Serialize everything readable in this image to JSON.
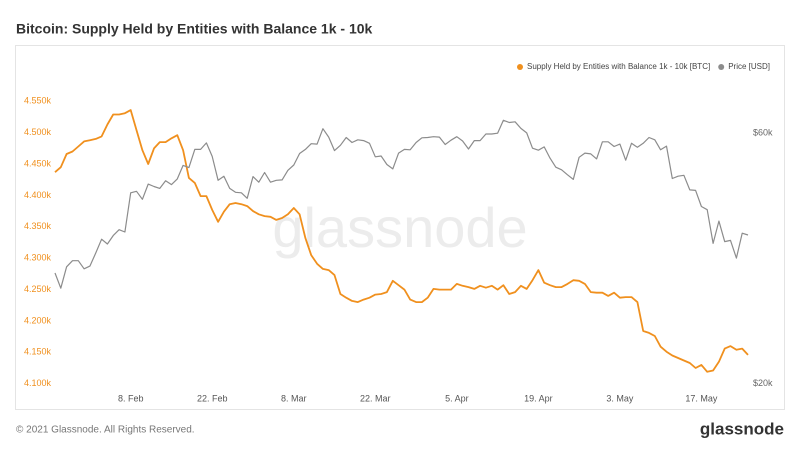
{
  "chart_data": {
    "type": "line",
    "title": "Bitcoin: Supply Held by Entities with Balance 1k - 10k",
    "watermark": "glassnode",
    "footer": {
      "copyright": "© 2021 Glassnode. All Rights Reserved.",
      "logo": "glassnode"
    },
    "legend": "top-right",
    "grid": false,
    "categories": [
      null,
      null,
      null,
      null,
      null,
      null,
      null,
      null,
      null,
      null,
      null,
      null,
      null,
      "8. Feb",
      null,
      null,
      null,
      null,
      null,
      null,
      null,
      null,
      null,
      null,
      null,
      null,
      null,
      "22. Feb",
      null,
      null,
      null,
      null,
      null,
      null,
      null,
      null,
      null,
      null,
      null,
      null,
      null,
      "8. Mar",
      null,
      null,
      null,
      null,
      null,
      null,
      null,
      null,
      null,
      null,
      null,
      null,
      null,
      "22. Mar",
      null,
      null,
      null,
      null,
      null,
      null,
      null,
      null,
      null,
      null,
      null,
      null,
      null,
      "5. Apr",
      null,
      null,
      null,
      null,
      null,
      null,
      null,
      null,
      null,
      null,
      null,
      null,
      null,
      "19. Apr",
      null,
      null,
      null,
      null,
      null,
      null,
      null,
      null,
      null,
      null,
      null,
      null,
      null,
      "3. May",
      null,
      null,
      null,
      null,
      null,
      null,
      null,
      null,
      null,
      null,
      null,
      null,
      null,
      "17. May",
      null,
      null,
      null,
      null,
      null,
      null,
      null,
      null
    ],
    "ylim": [
      4090,
      4560
    ],
    "yticks": [
      {
        "value": 4100,
        "label": "4.100k"
      },
      {
        "value": 4150,
        "label": "4.150k"
      },
      {
        "value": 4200,
        "label": "4.200k"
      },
      {
        "value": 4250,
        "label": "4.250k"
      },
      {
        "value": 4300,
        "label": "4.300k"
      },
      {
        "value": 4350,
        "label": "4.350k"
      },
      {
        "value": 4400,
        "label": "4.400k"
      },
      {
        "value": 4450,
        "label": "4.450k"
      },
      {
        "value": 4500,
        "label": "4.500k"
      },
      {
        "value": 4550,
        "label": "4.550k"
      }
    ],
    "y2lim": [
      19450,
      70960
    ],
    "y2log": true,
    "y2ticks": [
      {
        "value": 20000,
        "label": "$20k"
      },
      {
        "value": 60000,
        "label": "$60k"
      }
    ],
    "series": [
      {
        "name": "Supply Held by Entities with Balance 1k - 10k [BTC]",
        "color": "#f0901e",
        "axis": "y",
        "values": [
          4437,
          4445,
          4466,
          4470,
          4478,
          4486,
          4488,
          4490,
          4494,
          4513,
          4529,
          4529,
          4531,
          4536,
          4504,
          4472,
          4450,
          4475,
          4485,
          4485,
          4491,
          4496,
          4472,
          4428,
          4420,
          4399,
          4399,
          4377,
          4358,
          4374,
          4386,
          4388,
          4386,
          4383,
          4375,
          4370,
          4367,
          4366,
          4361,
          4364,
          4370,
          4380,
          4370,
          4332,
          4305,
          4291,
          4283,
          4281,
          4273,
          4243,
          4237,
          4232,
          4230,
          4234,
          4237,
          4242,
          4243,
          4246,
          4264,
          4257,
          4250,
          4234,
          4230,
          4230,
          4237,
          4251,
          4250,
          4250,
          4250,
          4259,
          4256,
          4254,
          4251,
          4256,
          4253,
          4256,
          4250,
          4257,
          4243,
          4246,
          4256,
          4251,
          4265,
          4281,
          4261,
          4257,
          4254,
          4254,
          4259,
          4265,
          4264,
          4259,
          4246,
          4245,
          4245,
          4240,
          4245,
          4237,
          4238,
          4238,
          4230,
          4184,
          4181,
          4176,
          4159,
          4151,
          4145,
          4141,
          4137,
          4133,
          4125,
          4130,
          4119,
          4121,
          4135,
          4156,
          4160,
          4154,
          4156,
          4146
        ]
      },
      {
        "name": "Price [USD]",
        "color": "#8c8c8c",
        "axis": "y2",
        "values": [
          32500,
          30400,
          33400,
          34300,
          34300,
          33100,
          33500,
          35500,
          37700,
          36900,
          38300,
          39300,
          38900,
          46200,
          46500,
          44900,
          48000,
          47500,
          47100,
          48700,
          47900,
          49100,
          52100,
          51600,
          55900,
          55900,
          57500,
          54200,
          48800,
          49700,
          47100,
          46300,
          46200,
          45100,
          49600,
          48400,
          50500,
          48400,
          48800,
          48900,
          51000,
          52200,
          54900,
          55900,
          57300,
          57200,
          61200,
          59000,
          55600,
          56900,
          58900,
          57600,
          58300,
          58100,
          57400,
          54100,
          54300,
          52300,
          51300,
          55000,
          55900,
          55800,
          57600,
          58800,
          58900,
          59100,
          59000,
          57100,
          58200,
          59100,
          58000,
          56000,
          58100,
          58100,
          59800,
          59800,
          60000,
          63500,
          62900,
          63100,
          61300,
          60100,
          56200,
          55700,
          56500,
          53800,
          51700,
          51100,
          50000,
          49000,
          54000,
          55000,
          54800,
          53600,
          57800,
          57800,
          56600,
          57200,
          53300,
          57400,
          56400,
          57400,
          58900,
          58300,
          55800,
          56700,
          49200,
          49700,
          49900,
          46800,
          46700,
          43500,
          42900,
          37000,
          40800,
          37300,
          37500,
          34700,
          38700,
          38400
        ]
      }
    ]
  }
}
